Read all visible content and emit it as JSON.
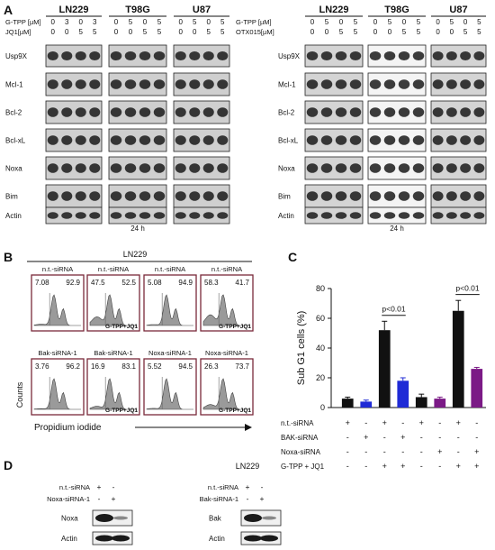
{
  "colors": {
    "black": "#111111",
    "blue": "#1f2bd6",
    "purple": "#7b1a86",
    "blot_dark": "#1a1a1a",
    "blot_bg": "#c9c9c9",
    "hist_fill": "#9a9a9a"
  },
  "panelA": {
    "letter": "A",
    "left": {
      "cells": [
        "LN229",
        "T98G",
        "U87"
      ],
      "row_labels": [
        "G-TPP [µM]",
        "JQ1[µM]"
      ],
      "gtpp": [
        [
          "0",
          "3",
          "0",
          "3"
        ],
        [
          "0",
          "5",
          "0",
          "5"
        ],
        [
          "0",
          "5",
          "0",
          "5"
        ]
      ],
      "jq1": [
        [
          "0",
          "0",
          "5",
          "5"
        ],
        [
          "0",
          "0",
          "5",
          "5"
        ],
        [
          "0",
          "0",
          "5",
          "5"
        ]
      ],
      "proteins": [
        "Usp9X",
        "Mcl-1",
        "Bcl-2",
        "Bcl-xL",
        "Noxa",
        "Bim",
        "Actin"
      ],
      "time": "24 h"
    },
    "right": {
      "cells": [
        "LN229",
        "T98G",
        "U87"
      ],
      "row_labels": [
        "G-TPP [µM]",
        "OTX015[µM]"
      ],
      "gtpp": [
        [
          "0",
          "5",
          "0",
          "5"
        ],
        [
          "0",
          "5",
          "0",
          "5"
        ],
        [
          "0",
          "5",
          "0",
          "5"
        ]
      ],
      "otx": [
        [
          "0",
          "0",
          "5",
          "5"
        ],
        [
          "0",
          "0",
          "5",
          "5"
        ],
        [
          "0",
          "0",
          "5",
          "5"
        ]
      ],
      "proteins": [
        "Usp9X",
        "Mcl-1",
        "Bcl-2",
        "Bcl-xL",
        "Noxa",
        "Bim",
        "Actin"
      ],
      "time": "24 h"
    }
  },
  "panelB": {
    "letter": "B",
    "cell": "LN229",
    "top": [
      {
        "title": "n.t.-siRNA",
        "left": "7.08",
        "right": "92.9",
        "treat": ""
      },
      {
        "title": "n.t.-siRNA",
        "left": "47.5",
        "right": "52.5",
        "treat": "G-TPP+JQ1"
      },
      {
        "title": "n.t.-siRNA",
        "left": "5.08",
        "right": "94.9",
        "treat": ""
      },
      {
        "title": "n.t.-siRNA",
        "left": "58.3",
        "right": "41.7",
        "treat": "G-TPP+JQ1"
      }
    ],
    "bottom": [
      {
        "title": "Bak-siRNA-1",
        "left": "3.76",
        "right": "96.2",
        "treat": ""
      },
      {
        "title": "Bak-siRNA-1",
        "left": "16.9",
        "right": "83.1",
        "treat": "G-TPP+JQ1"
      },
      {
        "title": "Noxa-siRNA-1",
        "left": "5.52",
        "right": "94.5",
        "treat": ""
      },
      {
        "title": "Noxa-siRNA-1",
        "left": "26.3",
        "right": "73.7",
        "treat": "G-TPP+JQ1"
      }
    ],
    "ylabel": "Counts",
    "xlabel": "Propidium iodide"
  },
  "chart_data": {
    "type": "bar",
    "letter": "C",
    "ylabel": "Sub G1 cells (%)",
    "ylim": [
      0,
      80
    ],
    "yticks": [
      "0",
      "20",
      "40",
      "60",
      "80"
    ],
    "values": [
      6,
      4,
      52,
      18,
      7,
      6,
      65,
      26
    ],
    "errors": [
      1,
      1,
      6,
      2,
      2,
      1,
      7,
      1
    ],
    "bar_colors": [
      "#111111",
      "#1f2bd6",
      "#111111",
      "#1f2bd6",
      "#111111",
      "#7b1a86",
      "#111111",
      "#7b1a86"
    ],
    "annotations": [
      "p<0.01",
      "p<0.01"
    ],
    "condition_rows": [
      {
        "label": "n.t.-siRNA",
        "marks": [
          "+",
          "-",
          "+",
          "-",
          "+",
          "-",
          "+",
          "-"
        ]
      },
      {
        "label": "BAK-siRNA",
        "marks": [
          "-",
          "+",
          "-",
          "+",
          "-",
          "-",
          "-",
          "-"
        ]
      },
      {
        "label": "Noxa-siRNA",
        "marks": [
          "-",
          "-",
          "-",
          "-",
          "-",
          "+",
          "-",
          "+"
        ]
      },
      {
        "label": "G-TPP + JQ1",
        "marks": [
          "-",
          "-",
          "+",
          "+",
          "-",
          "-",
          "+",
          "+"
        ]
      }
    ]
  },
  "panelD": {
    "letter": "D",
    "cell": "LN229",
    "left": {
      "rows": [
        "n.t.-siRNA",
        "Noxa-siRNA-1"
      ],
      "marks": [
        [
          "+",
          "-"
        ],
        [
          "-",
          "+"
        ]
      ],
      "proteins": [
        "Noxa",
        "Actin"
      ]
    },
    "right": {
      "rows": [
        "n.t.-siRNA",
        "Bak-siRNA-1"
      ],
      "marks": [
        [
          "+",
          "-"
        ],
        [
          "-",
          "+"
        ]
      ],
      "proteins": [
        "Bak",
        "Actin"
      ]
    }
  }
}
